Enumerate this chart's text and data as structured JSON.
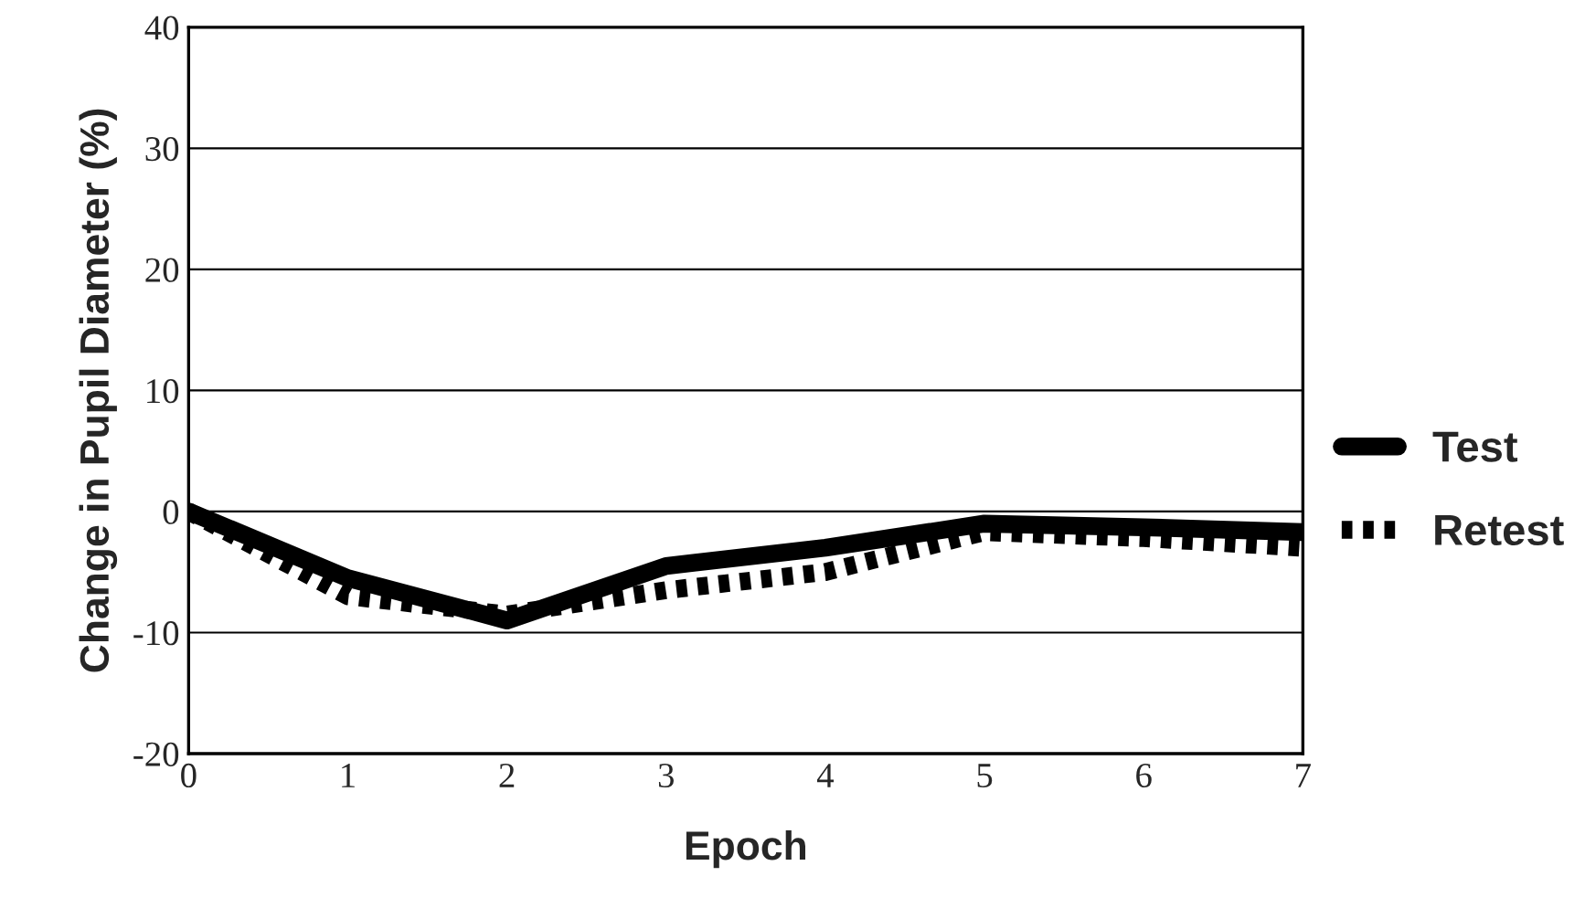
{
  "chart_data": {
    "type": "line",
    "xlabel": "Epoch",
    "ylabel": "Change in Pupil Diameter (%)",
    "x": [
      0,
      1,
      2,
      3,
      4,
      5,
      6,
      7
    ],
    "series": [
      {
        "name": "Test",
        "color": "#000000",
        "line_style": "solid",
        "values": [
          0,
          -5.5,
          -9,
          -4.5,
          -3,
          -1,
          -1.3,
          -1.7
        ]
      },
      {
        "name": "Retest",
        "color": "#000000",
        "line_style": "dotted",
        "values": [
          0,
          -7,
          -8.5,
          -6.5,
          -5,
          -1.7,
          -2.2,
          -3
        ]
      }
    ],
    "xlim": [
      0,
      7
    ],
    "xticks": [
      0,
      1,
      2,
      3,
      4,
      5,
      6,
      7
    ],
    "ylim": [
      -20,
      40
    ],
    "yticks": [
      -20,
      -10,
      0,
      10,
      20,
      30,
      40
    ],
    "grid": "y",
    "legend": "right",
    "marker": "none"
  }
}
